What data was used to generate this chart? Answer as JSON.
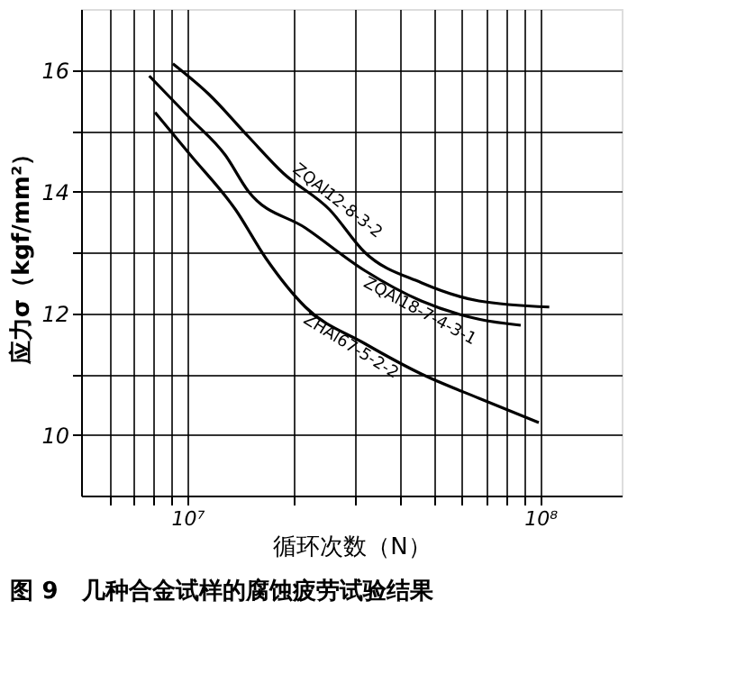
{
  "chart_data": {
    "type": "line",
    "title": "图 9　几种合金试样的腐蚀疲劳试验结果",
    "xlabel": "循环次数（N）",
    "ylabel": "应力σ（kgf/mm²）",
    "log": "x",
    "grid": true,
    "legend": false,
    "marker": "none",
    "line_style": "solid",
    "xlim": [
      5000000,
      170000000
    ],
    "ylim": [
      9,
      17
    ],
    "xticks": [
      {
        "value": 6000000,
        "label": null
      },
      {
        "value": 7000000,
        "label": null
      },
      {
        "value": 8000000,
        "label": null
      },
      {
        "value": 9000000,
        "label": null
      },
      {
        "value": 10000000,
        "label": "10⁷"
      },
      {
        "value": 20000000,
        "label": null
      },
      {
        "value": 30000000,
        "label": null
      },
      {
        "value": 40000000,
        "label": null
      },
      {
        "value": 50000000,
        "label": null
      },
      {
        "value": 60000000,
        "label": null
      },
      {
        "value": 70000000,
        "label": null
      },
      {
        "value": 80000000,
        "label": null
      },
      {
        "value": 90000000,
        "label": null
      },
      {
        "value": 100000000,
        "label": "10⁸"
      }
    ],
    "yticks": [
      10,
      {
        "value": 11,
        "label": null
      },
      12,
      {
        "value": 13,
        "label": null
      },
      14,
      {
        "value": 15,
        "label": null
      },
      16
    ],
    "series": [
      {
        "name": "ZQAl12-8-3-2",
        "color": "#000000",
        "x": [
          9100000,
          11500000,
          14900000,
          18700000,
          25300000,
          31800000,
          46000000,
          67000000,
          106000000
        ],
        "values": [
          16.1,
          15.6,
          14.9,
          14.3,
          13.7,
          13.0,
          12.5,
          12.2,
          12.1
        ]
      },
      {
        "name": "ZQAl18-7-4-3-1",
        "color": "#000000",
        "x": [
          7800000,
          10200000,
          12800000,
          14900000,
          21600000,
          31800000,
          46000000,
          67000000,
          88000000
        ],
        "values": [
          15.9,
          15.2,
          14.6,
          14.0,
          13.4,
          12.7,
          12.2,
          11.9,
          11.8
        ]
      },
      {
        "name": "ZHAl67-5-2-2",
        "color": "#000000",
        "x": [
          8100000,
          10200000,
          13700000,
          16700000,
          21600000,
          31800000,
          46000000,
          67000000,
          99000000
        ],
        "values": [
          15.3,
          14.6,
          13.7,
          12.9,
          12.1,
          11.5,
          11.0,
          10.6,
          10.2
        ]
      }
    ]
  }
}
